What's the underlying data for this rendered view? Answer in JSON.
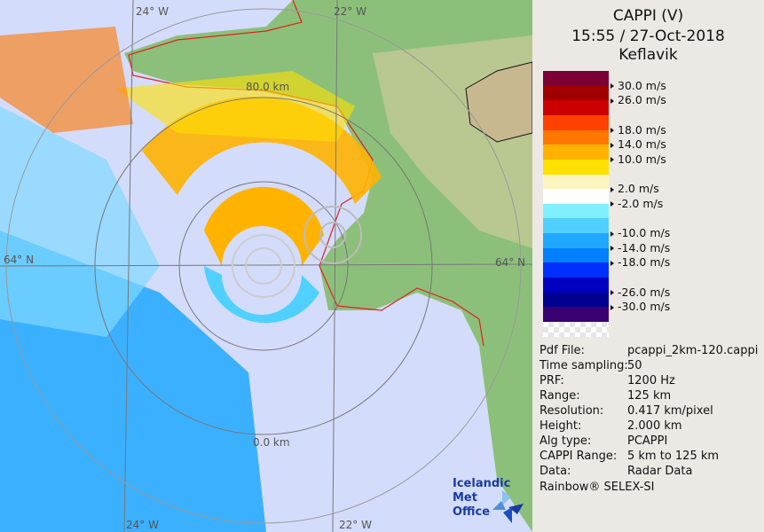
{
  "header": {
    "title": "CAPPI (V)",
    "datetime": "15:55 / 27-Oct-2018",
    "site": "Keflavik"
  },
  "legend": {
    "colors": [
      "#7a0035",
      "#a00000",
      "#cc0000",
      "#ff4000",
      "#ff7700",
      "#ffb300",
      "#ffe000",
      "#fdf5c0",
      "#ffffff",
      "#80f0ff",
      "#50d0ff",
      "#20a8ff",
      "#0080ff",
      "#0030ff",
      "#0000c0",
      "#000090",
      "#380070"
    ],
    "ticks": [
      {
        "label": "30.0 m/s",
        "boundary": 1
      },
      {
        "label": "26.0 m/s",
        "boundary": 2
      },
      {
        "label": "18.0 m/s",
        "boundary": 4
      },
      {
        "label": "14.0 m/s",
        "boundary": 5
      },
      {
        "label": "10.0 m/s",
        "boundary": 6
      },
      {
        "label": "2.0 m/s",
        "boundary": 8
      },
      {
        "label": "-2.0 m/s",
        "boundary": 9
      },
      {
        "label": "-10.0 m/s",
        "boundary": 11
      },
      {
        "label": "-14.0 m/s",
        "boundary": 12
      },
      {
        "label": "-18.0 m/s",
        "boundary": 13
      },
      {
        "label": "-26.0 m/s",
        "boundary": 15
      },
      {
        "label": "-30.0 m/s",
        "boundary": 16
      }
    ]
  },
  "info": [
    {
      "key": "Pdf File:",
      "value": "pcappi_2km-120.cappi"
    },
    {
      "key": "Time sampling:",
      "value": "50"
    },
    {
      "key": "PRF:",
      "value": "1200 Hz"
    },
    {
      "key": "Range:",
      "value": "125 km"
    },
    {
      "key": "Resolution:",
      "value": "0.417 km/pixel"
    },
    {
      "key": "Height:",
      "value": "2.000 km"
    },
    {
      "key": "Alg type:",
      "value": "PCAPPI"
    },
    {
      "key": "CAPPI Range:",
      "value": "5 km to 125 km"
    },
    {
      "key": "Data:",
      "value": "Radar Data"
    }
  ],
  "footer": "Rainbow® SELEX-SI",
  "map": {
    "labels": {
      "lon_24_top": "24° W",
      "lon_22_top": "22° W",
      "lat_64_right": "64° N",
      "lat_64_left": "64° N",
      "lon_22_bottom": "22° W",
      "lon_24_bottom": "24° W",
      "ring_80": "80.0 km",
      "ring_0": "0.0 km"
    },
    "logo": {
      "line1": "Icelandic Met",
      "line2": "Office"
    }
  }
}
